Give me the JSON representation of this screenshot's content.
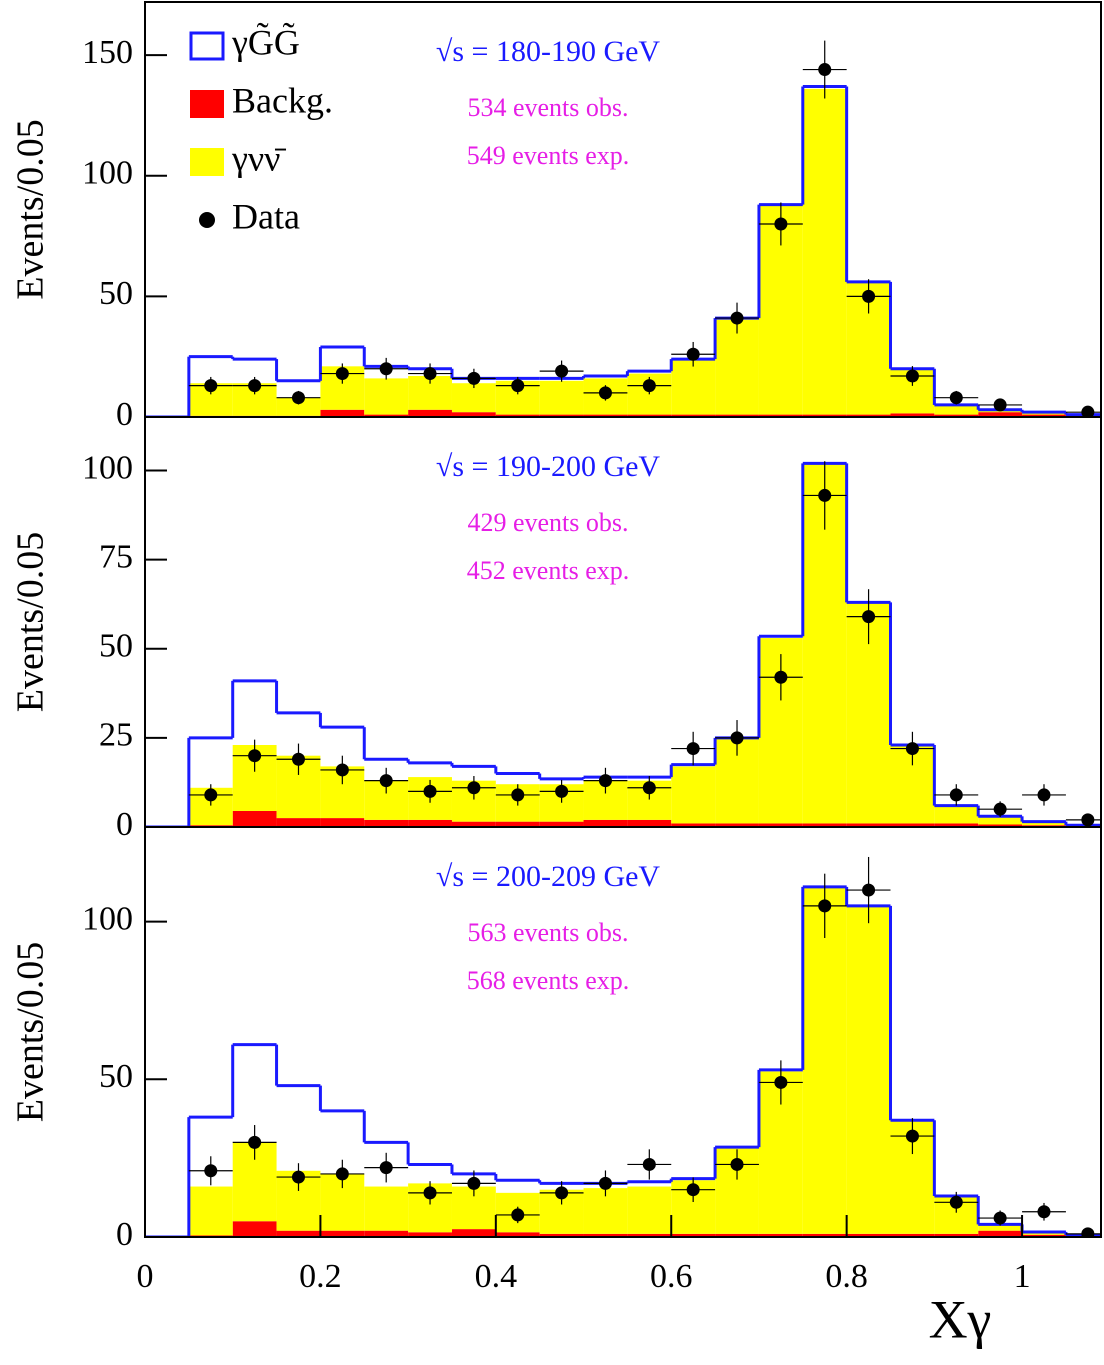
{
  "chart_data": [
    {
      "type": "histogram",
      "ylabel": "Events/0.05",
      "xlim": [
        0,
        1.09
      ],
      "ylim": [
        0,
        172
      ],
      "yticks": [
        0,
        50,
        100,
        150
      ],
      "legend": "upper left",
      "bins": [
        0,
        0.05,
        0.1,
        0.15,
        0.2,
        0.25,
        0.3,
        0.35,
        0.4,
        0.45,
        0.5,
        0.55,
        0.6,
        0.65,
        0.7,
        0.75,
        0.8,
        0.85,
        0.9,
        0.95,
        1,
        1.05,
        1.1
      ],
      "annotations": [
        {
          "text": "√s = 180-190 GeV",
          "color": "#1a1aff"
        },
        {
          "text": "534 events obs.",
          "color": "#e61ee6"
        },
        {
          "text": "549 events exp.",
          "color": "#e61ee6"
        }
      ],
      "series": [
        {
          "name": "γG̃G̃",
          "color": "#1a1aff",
          "style": "outline",
          "values": [
            0,
            11,
            10,
            7,
            8,
            5,
            3,
            2,
            1,
            1,
            1,
            1,
            0,
            0,
            0,
            1,
            0,
            0,
            0,
            0,
            0,
            0
          ]
        },
        {
          "name": "Backg.",
          "color": "#ff0000",
          "values": [
            0,
            0.5,
            0.5,
            0.5,
            3,
            1,
            3,
            2,
            1,
            1,
            1,
            1,
            1,
            1,
            1,
            1,
            1,
            1.5,
            1,
            2,
            1,
            0.5
          ]
        },
        {
          "name": "γνν̄",
          "color": "#ffff00",
          "values": [
            0,
            13.5,
            13.5,
            7.5,
            18,
            15,
            14,
            12,
            14,
            14,
            15,
            17,
            23,
            40,
            87,
            135,
            55,
            18.5,
            4,
            1,
            1,
            0.5
          ]
        },
        {
          "name": "Data",
          "color": "#000000",
          "x": [
            0.075,
            0.125,
            0.175,
            0.225,
            0.275,
            0.325,
            0.375,
            0.425,
            0.475,
            0.525,
            0.575,
            0.625,
            0.675,
            0.725,
            0.775,
            0.825,
            0.875,
            0.925,
            0.975,
            1.025,
            1.075
          ],
          "values": [
            13,
            13,
            8,
            18,
            20,
            18,
            16,
            13,
            19,
            10,
            13,
            26,
            41,
            80,
            144,
            50,
            17,
            8,
            5,
            null,
            2
          ],
          "errors": [
            3.6,
            3.6,
            2.8,
            4.2,
            4.5,
            4.2,
            4,
            3.6,
            4.4,
            3.2,
            3.6,
            5.1,
            6.4,
            8.9,
            12,
            7.1,
            4.1,
            2.8,
            2.2,
            null,
            1.4
          ]
        }
      ]
    },
    {
      "type": "histogram",
      "ylabel": "Events/0.05",
      "xlim": [
        0,
        1.09
      ],
      "ylim": [
        0,
        115
      ],
      "yticks": [
        0,
        25,
        50,
        75,
        100
      ],
      "bins": [
        0,
        0.05,
        0.1,
        0.15,
        0.2,
        0.25,
        0.3,
        0.35,
        0.4,
        0.45,
        0.5,
        0.55,
        0.6,
        0.65,
        0.7,
        0.75,
        0.8,
        0.85,
        0.9,
        0.95,
        1,
        1.05,
        1.1
      ],
      "annotations": [
        {
          "text": "√s = 190-200 GeV",
          "color": "#1a1aff"
        },
        {
          "text": "429 events obs.",
          "color": "#e61ee6"
        },
        {
          "text": "452 events exp.",
          "color": "#e61ee6"
        }
      ],
      "series": [
        {
          "name": "γG̃G̃",
          "color": "#1a1aff",
          "style": "outline",
          "values": [
            0,
            14,
            18,
            12,
            11,
            6,
            4,
            4,
            3,
            1.5,
            1,
            1,
            0.5,
            0,
            0.5,
            0,
            0,
            0,
            0,
            0,
            0,
            0
          ]
        },
        {
          "name": "Backg.",
          "color": "#ff0000",
          "values": [
            0,
            0.5,
            4.5,
            2.5,
            2.5,
            2,
            2,
            1.5,
            1.5,
            1.5,
            2,
            2,
            1,
            1,
            1,
            1,
            1,
            1,
            1,
            0.7,
            0.5,
            0.3
          ]
        },
        {
          "name": "γνν̄",
          "color": "#ffff00",
          "values": [
            0,
            10.5,
            18.5,
            17.5,
            14.5,
            11,
            12,
            11.5,
            10.5,
            10.5,
            11,
            11,
            16,
            24,
            52,
            101,
            62,
            22,
            5,
            2.3,
            1,
            0.2
          ]
        },
        {
          "name": "Data",
          "color": "#000000",
          "x": [
            0.075,
            0.125,
            0.175,
            0.225,
            0.275,
            0.325,
            0.375,
            0.425,
            0.475,
            0.525,
            0.575,
            0.625,
            0.675,
            0.725,
            0.775,
            0.825,
            0.875,
            0.925,
            0.975,
            1.025,
            1.075
          ],
          "values": [
            9,
            20,
            19,
            16,
            13,
            10,
            11,
            9,
            10,
            13,
            11,
            22,
            25,
            42,
            93,
            59,
            22,
            9,
            5,
            9,
            2
          ],
          "errors": [
            3,
            4.5,
            4.4,
            4,
            3.6,
            3.2,
            3.3,
            3,
            3.2,
            3.6,
            3.3,
            4.7,
            5,
            6.5,
            9.6,
            7.7,
            4.7,
            3,
            2.2,
            3,
            1.4
          ]
        }
      ]
    },
    {
      "type": "histogram",
      "ylabel": "Events/0.05",
      "xlabel": "Xγ",
      "xlim": [
        0,
        1.09
      ],
      "ylim": [
        0,
        130
      ],
      "yticks": [
        0,
        50,
        100
      ],
      "xticks": [
        0,
        0.2,
        0.4,
        0.6,
        0.8,
        1
      ],
      "bins": [
        0,
        0.05,
        0.1,
        0.15,
        0.2,
        0.25,
        0.3,
        0.35,
        0.4,
        0.45,
        0.5,
        0.55,
        0.6,
        0.65,
        0.7,
        0.75,
        0.8,
        0.85,
        0.9,
        0.95,
        1,
        1.05,
        1.1
      ],
      "annotations": [
        {
          "text": "√s = 200-209 GeV",
          "color": "#1a1aff"
        },
        {
          "text": "563 events obs.",
          "color": "#e61ee6"
        },
        {
          "text": "568 events exp.",
          "color": "#e61ee6"
        }
      ],
      "series": [
        {
          "name": "γG̃G̃",
          "color": "#1a1aff",
          "style": "outline",
          "values": [
            0,
            22,
            31,
            27,
            20,
            14,
            6,
            4,
            4,
            2,
            1.5,
            1.5,
            0.5,
            0,
            0.5,
            0,
            0,
            0,
            0,
            0,
            0,
            0
          ]
        },
        {
          "name": "Backg.",
          "color": "#ff0000",
          "values": [
            0,
            0.5,
            5,
            2,
            2,
            2,
            1.5,
            2.5,
            1.5,
            1,
            1,
            1,
            1,
            1,
            1,
            1,
            1,
            1,
            1,
            2,
            0.7,
            0.3
          ]
        },
        {
          "name": "γνν̄",
          "color": "#ffff00",
          "values": [
            0,
            15.5,
            25,
            19,
            18,
            14,
            15.5,
            13.5,
            12.5,
            14,
            14.5,
            15,
            17,
            27.5,
            51.5,
            110,
            104,
            36,
            12,
            2,
            0.9,
            0.3
          ]
        },
        {
          "name": "Data",
          "color": "#000000",
          "x": [
            0.075,
            0.125,
            0.175,
            0.225,
            0.275,
            0.325,
            0.375,
            0.425,
            0.475,
            0.525,
            0.575,
            0.625,
            0.675,
            0.725,
            0.775,
            0.825,
            0.875,
            0.925,
            0.975,
            1.025,
            1.075
          ],
          "values": [
            21,
            30,
            19,
            20,
            22,
            14,
            17,
            7,
            14,
            17,
            23,
            15,
            23,
            49,
            105,
            110,
            32,
            11,
            6,
            8,
            1
          ],
          "errors": [
            4.6,
            5.5,
            4.4,
            4.5,
            4.7,
            3.7,
            4.1,
            2.6,
            3.7,
            4.1,
            4.8,
            3.9,
            4.8,
            7,
            10.2,
            10.5,
            5.7,
            3.3,
            2.4,
            2.8,
            1
          ]
        }
      ]
    }
  ]
}
